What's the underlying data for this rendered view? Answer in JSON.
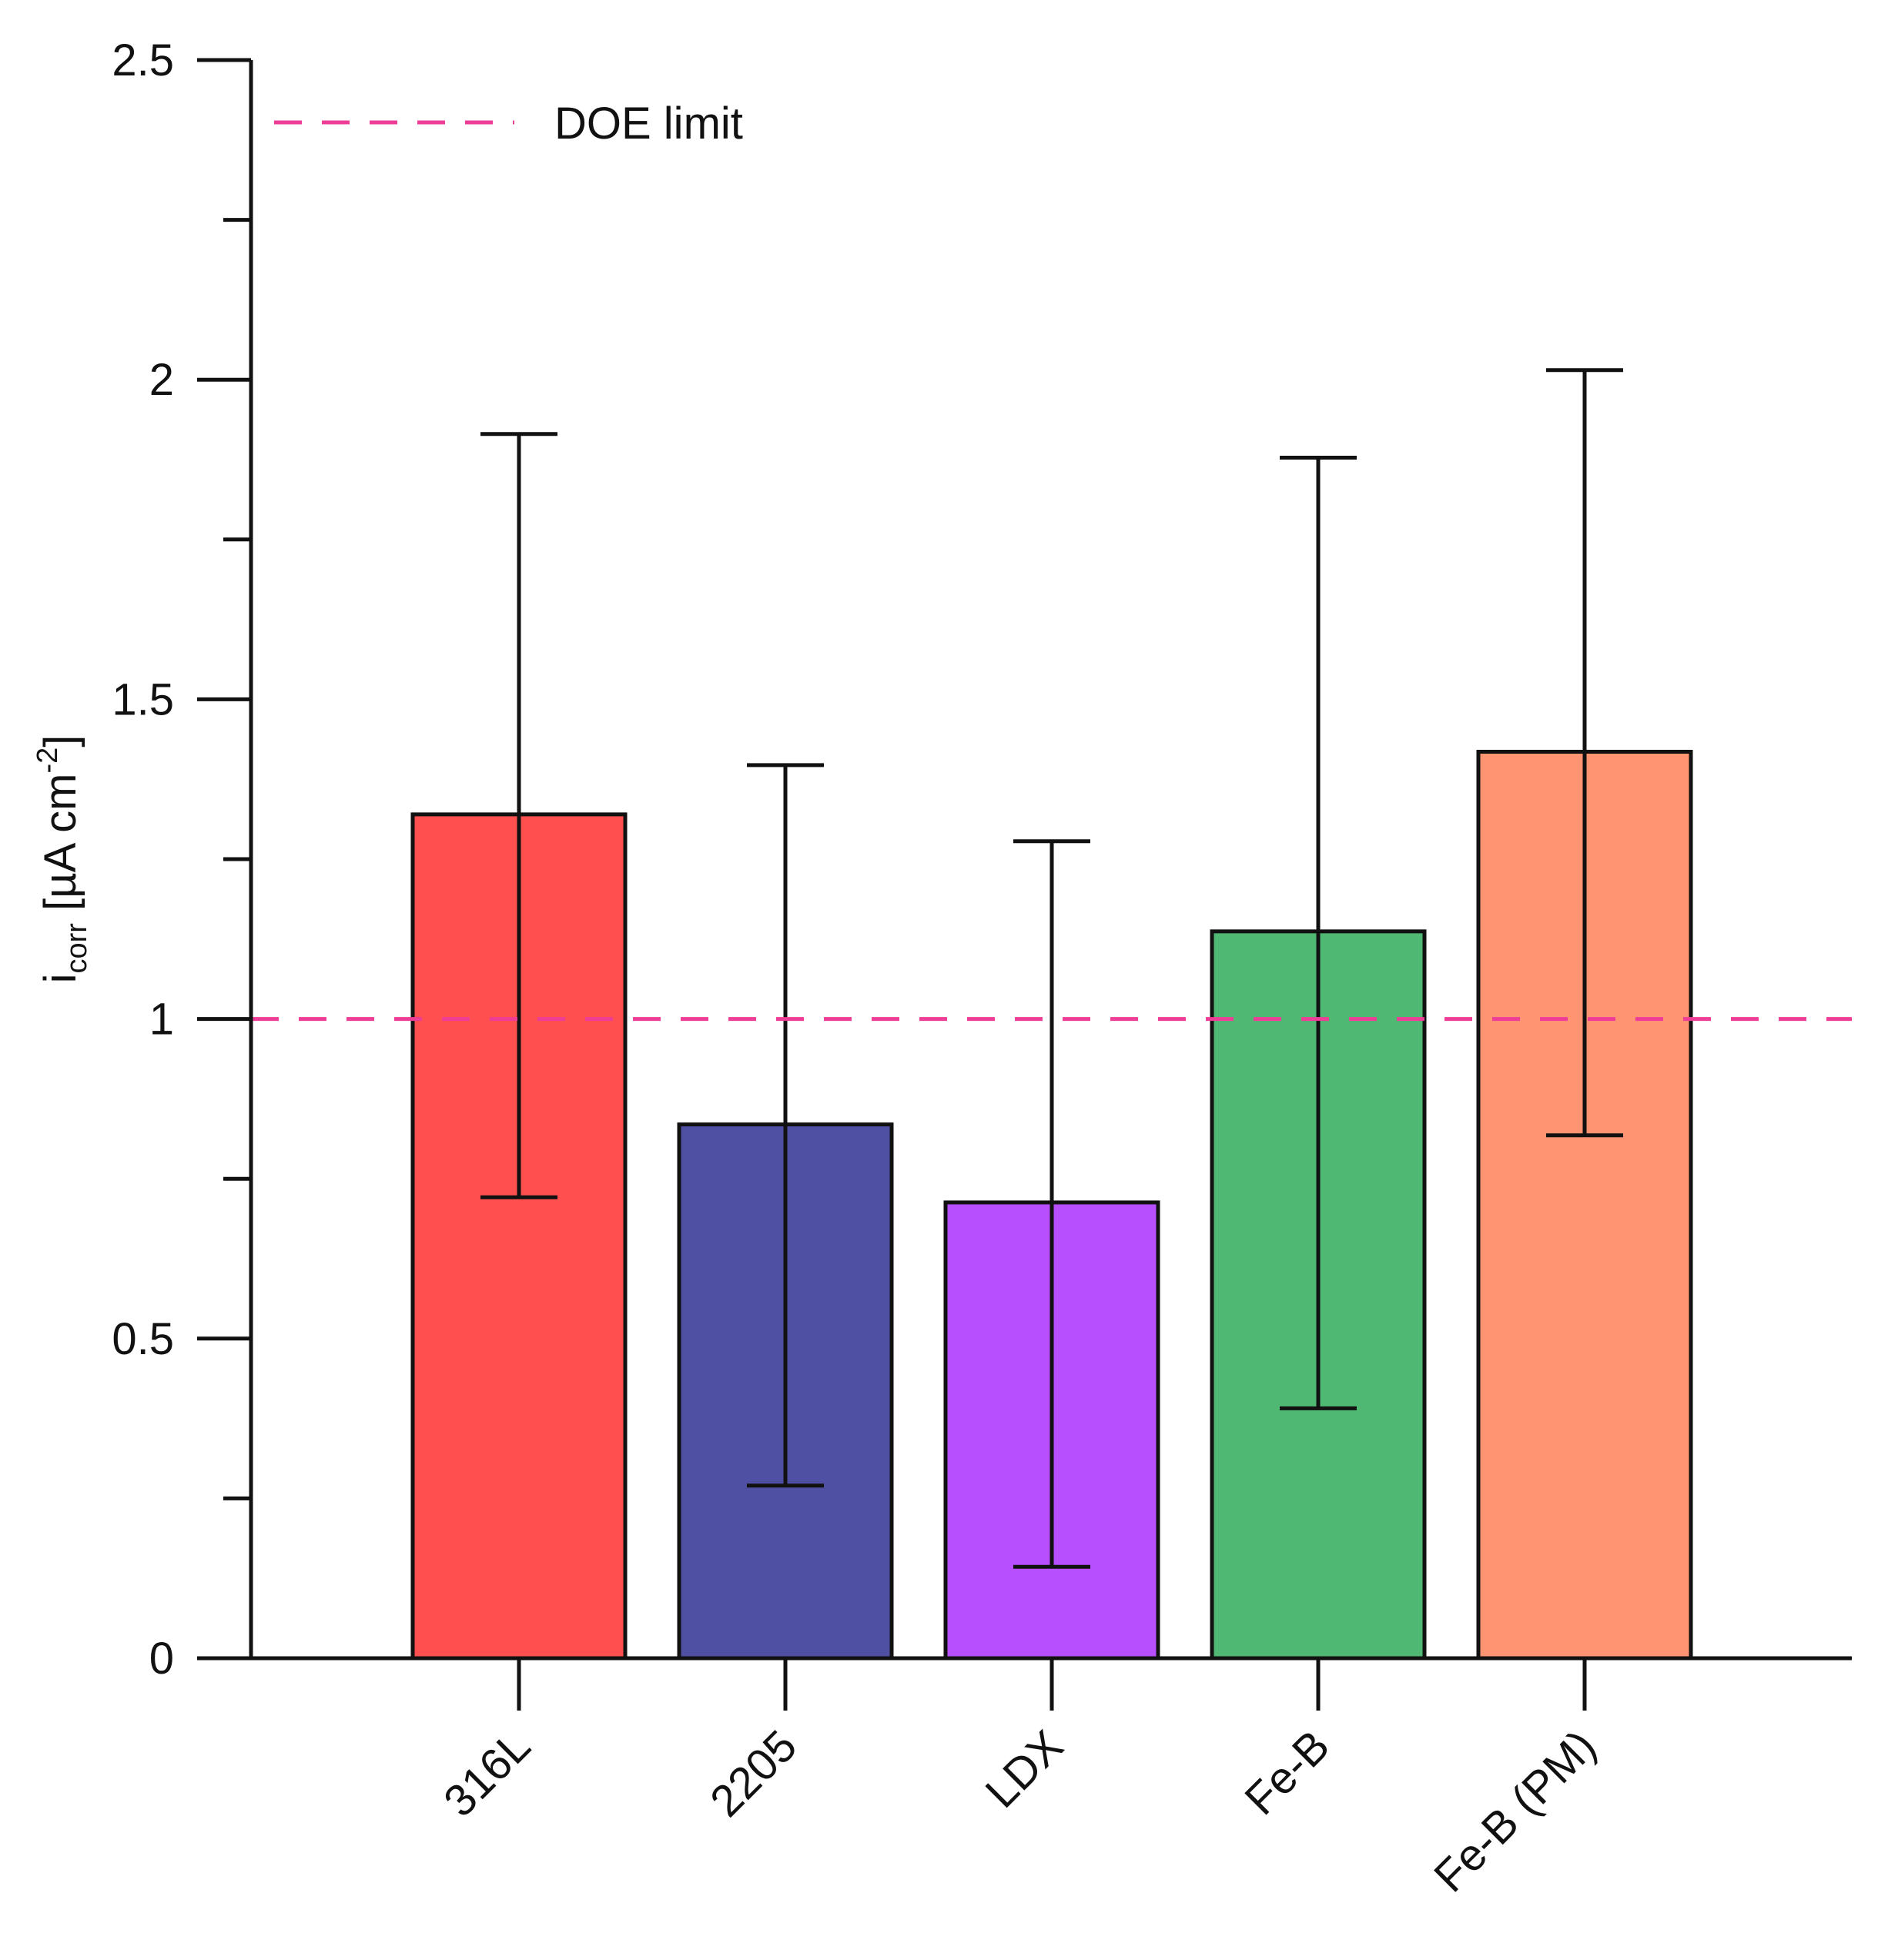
{
  "chart_data": {
    "type": "bar",
    "title": "",
    "xlabel": "",
    "ylabel": {
      "prefix": "i",
      "subscript": "corr",
      "unit_prefix": " [µA cm",
      "superscript": "-2",
      "unit_suffix": "]"
    },
    "ylim": [
      0,
      2.5
    ],
    "yticks": [
      {
        "value": 0,
        "label": "0"
      },
      {
        "value": 0.5,
        "label": "0.5"
      },
      {
        "value": 1,
        "label": "1"
      },
      {
        "value": 1.5,
        "label": "1.5"
      },
      {
        "value": 2,
        "label": "2"
      },
      {
        "value": 2.5,
        "label": "2.5"
      }
    ],
    "yminor_ticks": [
      0.25,
      0.75,
      1.25,
      1.75,
      2.25
    ],
    "categories": [
      "316L",
      "2205",
      "LDX",
      "Fe-B",
      "Fe-B (PM)"
    ],
    "values": [
      1.32,
      0.835,
      0.713,
      1.137,
      1.418
    ],
    "error_low": [
      0.721,
      0.27,
      0.143,
      0.391,
      0.818
    ],
    "error_high": [
      1.915,
      1.397,
      1.278,
      1.878,
      2.015
    ],
    "colors": [
      "#ff4f4f",
      "#4f4fa3",
      "#b84fff",
      "#4fb873",
      "#ff9473"
    ],
    "reference_line": {
      "value": 1,
      "label": "DOE limit",
      "color": "#ee3d96",
      "style": "dashed"
    },
    "grid": false,
    "legend_position": "top-left"
  }
}
